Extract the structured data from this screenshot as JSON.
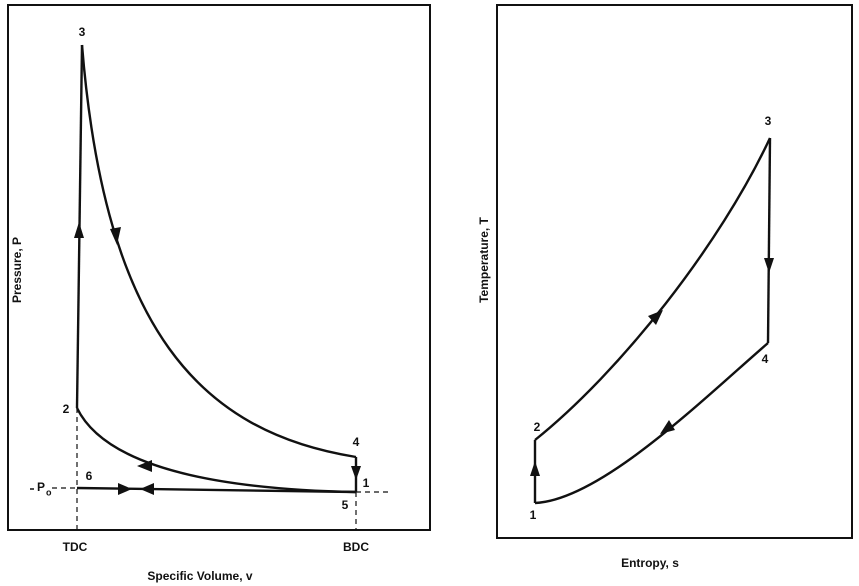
{
  "pv_diagram": {
    "y_label": "Pressure, P",
    "x_label": "Specific Volume, v",
    "points": {
      "1": "1",
      "2": "2",
      "3": "3",
      "4": "4",
      "5": "5",
      "6": "6"
    },
    "tdc": "TDC",
    "bdc": "BDC",
    "p0": {
      "symbol": "P",
      "subscript": "o"
    }
  },
  "ts_diagram": {
    "y_label": "Temperature, T",
    "x_label": "Entropy, s",
    "points": {
      "1": "1",
      "2": "2",
      "3": "3",
      "4": "4"
    }
  }
}
